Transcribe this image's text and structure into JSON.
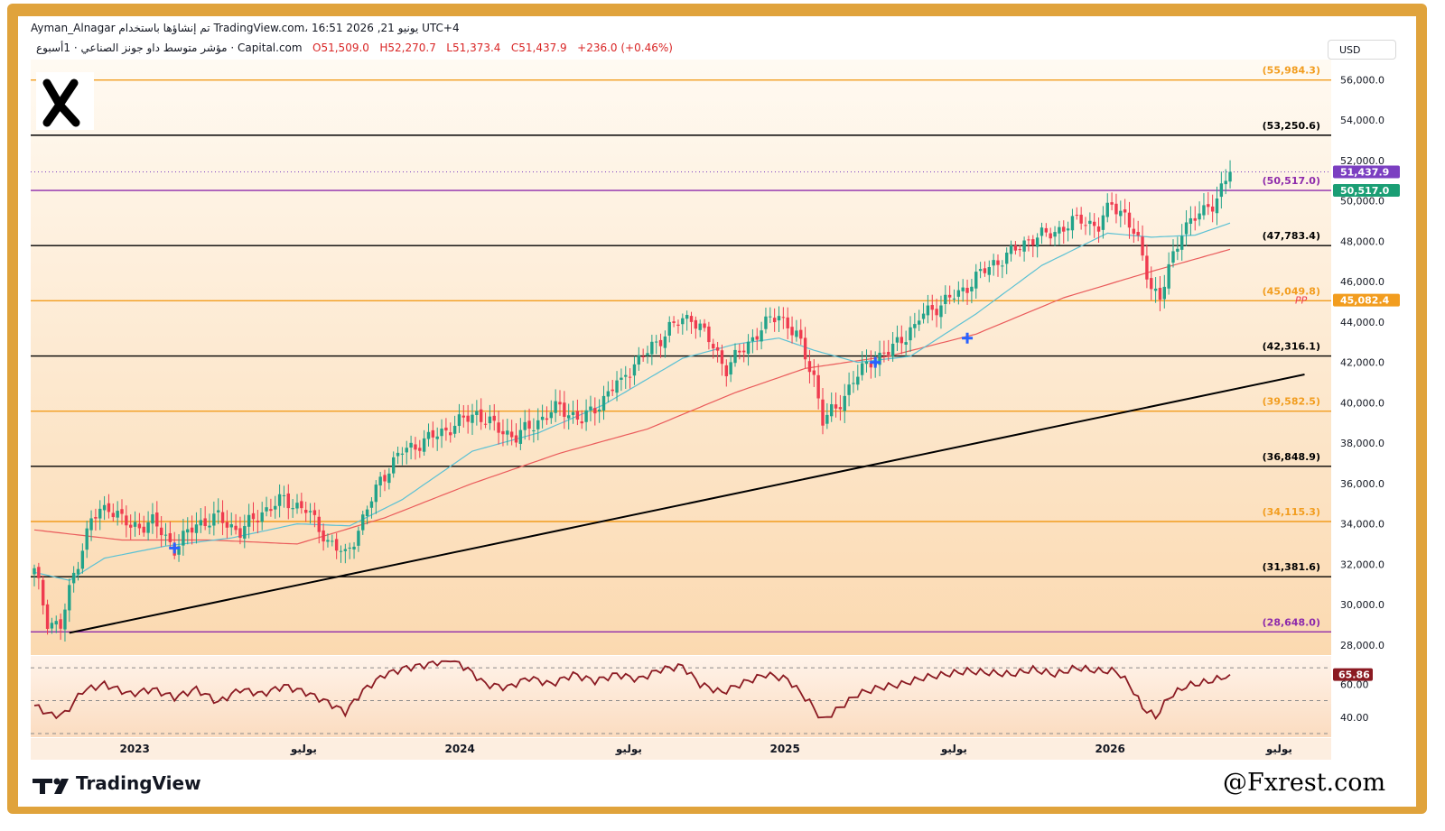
{
  "header": {
    "line1": "Ayman_Alnagar تم إنشاؤها باستخدام TradingView.com، 16:51 2026 ,21 يونيو UTC+4",
    "title": "مؤشر متوسط داو جونز الصناعي · 1أسبوع · Capital.com",
    "ohlc_o": "O51,509.0",
    "ohlc_h": "H52,270.7",
    "ohlc_l": "L51,373.4",
    "ohlc_c": "C51,437.9",
    "change": "+236.0 (+0.46%)",
    "currency": "USD"
  },
  "footer": {
    "brand": "TradingView",
    "watermark": "@Fxrest.com"
  },
  "colors": {
    "up": "#22a38a",
    "down": "#ef3b4f",
    "fib_orange": "#f29d1f",
    "fib_black": "#000000",
    "fib_purple": "#8e2bab",
    "ema_fast": "#5bc1d4",
    "ema_slow": "#ea5b5b",
    "rsi": "#8b1a22",
    "frame": "#e0a33c"
  },
  "chart_data": {
    "type": "candlestick",
    "timeframe": "1W",
    "ylim": [
      27500,
      57000
    ],
    "y_ticks": [
      28000,
      30000,
      32000,
      34000,
      36000,
      38000,
      40000,
      42000,
      44000,
      46000,
      48000,
      50000,
      52000,
      54000,
      56000
    ],
    "y_tick_labels": [
      "28,000.0",
      "30,000.0",
      "32,000.0",
      "34,000.0",
      "36,000.0",
      "38,000.0",
      "40,000.0",
      "42,000.0",
      "44,000.0",
      "46,000.0",
      "48,000.0",
      "50,000.0",
      "52,000.0",
      "54,000.0",
      "56,000.0"
    ],
    "x_labels": [
      "2023",
      "يوليو",
      "2024",
      "يوليو",
      "2025",
      "يوليو",
      "2026",
      "يوليو"
    ],
    "x_label_positions": [
      0.08,
      0.21,
      0.33,
      0.46,
      0.58,
      0.71,
      0.83,
      0.96
    ],
    "fib_levels": [
      {
        "value": 55984.3,
        "label": "(55,984.3)",
        "color": "orange"
      },
      {
        "value": 53250.6,
        "label": "(53,250.6)",
        "color": "black"
      },
      {
        "value": 50517.0,
        "label": "(50,517.0)",
        "color": "purple"
      },
      {
        "value": 47783.4,
        "label": "(47,783.4)",
        "color": "black"
      },
      {
        "value": 45049.8,
        "label": "(45,049.8)",
        "color": "orange"
      },
      {
        "value": 42316.1,
        "label": "(42,316.1)",
        "color": "black"
      },
      {
        "value": 39582.5,
        "label": "(39,582.5)",
        "color": "orange"
      },
      {
        "value": 36848.9,
        "label": "(36,848.9)",
        "color": "black"
      },
      {
        "value": 34115.3,
        "label": "(34,115.3)",
        "color": "orange"
      },
      {
        "value": 31381.6,
        "label": "(31,381.6)",
        "color": "black"
      },
      {
        "value": 28648.0,
        "label": "(28,648.0)",
        "color": "purple"
      }
    ],
    "price_tags": [
      {
        "value": 51437.9,
        "label": "51,437.9",
        "color": "#7b3fc1"
      },
      {
        "value": 50517.0,
        "label": "50,517.0",
        "color": "#1a9e74"
      },
      {
        "value": 45082.4,
        "label": "45,082.4",
        "color": "#f29d1f"
      }
    ],
    "pp_label": "PP",
    "anchor_closes": [
      [
        0,
        31800
      ],
      [
        3,
        29200
      ],
      [
        6,
        28900
      ],
      [
        9,
        31500
      ],
      [
        13,
        34200
      ],
      [
        17,
        34900
      ],
      [
        22,
        33800
      ],
      [
        27,
        34100
      ],
      [
        32,
        32800
      ],
      [
        37,
        34000
      ],
      [
        42,
        34300
      ],
      [
        47,
        33600
      ],
      [
        52,
        34600
      ],
      [
        57,
        35200
      ],
      [
        62,
        34700
      ],
      [
        67,
        33200
      ],
      [
        71,
        32400
      ],
      [
        75,
        34200
      ],
      [
        79,
        36200
      ],
      [
        84,
        37600
      ],
      [
        90,
        38200
      ],
      [
        96,
        38900
      ],
      [
        101,
        39500
      ],
      [
        105,
        38800
      ],
      [
        110,
        38300
      ],
      [
        115,
        39100
      ],
      [
        120,
        39800
      ],
      [
        125,
        39100
      ],
      [
        130,
        40200
      ],
      [
        135,
        41500
      ],
      [
        140,
        42500
      ],
      [
        145,
        43700
      ],
      [
        150,
        44300
      ],
      [
        154,
        43100
      ],
      [
        158,
        41700
      ],
      [
        162,
        42700
      ],
      [
        166,
        43700
      ],
      [
        170,
        44400
      ],
      [
        174,
        43300
      ],
      [
        178,
        41300
      ],
      [
        180,
        39100
      ],
      [
        183,
        39700
      ],
      [
        187,
        41100
      ],
      [
        191,
        42100
      ],
      [
        195,
        42500
      ],
      [
        199,
        43400
      ],
      [
        203,
        44400
      ],
      [
        207,
        44900
      ],
      [
        211,
        45400
      ],
      [
        215,
        46200
      ],
      [
        219,
        46900
      ],
      [
        223,
        47400
      ],
      [
        227,
        48100
      ],
      [
        231,
        48300
      ],
      [
        235,
        48700
      ],
      [
        239,
        49100
      ],
      [
        243,
        48700
      ],
      [
        246,
        49900
      ],
      [
        249,
        49300
      ],
      [
        252,
        47900
      ],
      [
        255,
        45800
      ],
      [
        257,
        45100
      ],
      [
        259,
        46600
      ],
      [
        262,
        48600
      ],
      [
        266,
        49300
      ],
      [
        270,
        50100
      ],
      [
        273,
        51437.9
      ]
    ],
    "pp_series": [
      [
        0,
        33700
      ],
      [
        20,
        33200
      ],
      [
        40,
        33200
      ],
      [
        60,
        33000
      ],
      [
        80,
        34300
      ],
      [
        100,
        36000
      ],
      [
        120,
        37500
      ],
      [
        140,
        38700
      ],
      [
        160,
        40500
      ],
      [
        176,
        41700
      ],
      [
        195,
        42300
      ],
      [
        215,
        43400
      ],
      [
        235,
        45200
      ],
      [
        255,
        46500
      ],
      [
        273,
        47600
      ]
    ],
    "ema_anchors": [
      [
        0,
        31600
      ],
      [
        8,
        31200
      ],
      [
        16,
        32300
      ],
      [
        30,
        32900
      ],
      [
        45,
        33300
      ],
      [
        60,
        34000
      ],
      [
        72,
        33900
      ],
      [
        84,
        35200
      ],
      [
        100,
        37600
      ],
      [
        115,
        38500
      ],
      [
        130,
        39900
      ],
      [
        148,
        42200
      ],
      [
        160,
        42900
      ],
      [
        170,
        43200
      ],
      [
        178,
        42600
      ],
      [
        188,
        42000
      ],
      [
        200,
        42300
      ],
      [
        215,
        44400
      ],
      [
        230,
        46800
      ],
      [
        245,
        48400
      ],
      [
        255,
        48200
      ],
      [
        265,
        48300
      ],
      [
        273,
        48900
      ]
    ],
    "markers": [
      [
        32,
        32800
      ],
      [
        192,
        42000
      ],
      [
        213,
        43200
      ]
    ],
    "trendline": {
      "from": [
        8,
        28600
      ],
      "to": [
        290,
        41400
      ]
    },
    "rsi": {
      "value": 65.86,
      "label": "65.86",
      "ylim": [
        30,
        75
      ],
      "levels": [
        70,
        50,
        30
      ],
      "tick_labels": [
        {
          "v": 60,
          "label": "60.00"
        },
        {
          "v": 40,
          "label": "40.00"
        }
      ],
      "anchors": [
        [
          0,
          47
        ],
        [
          4,
          41
        ],
        [
          7,
          42
        ],
        [
          11,
          56
        ],
        [
          16,
          60
        ],
        [
          22,
          54
        ],
        [
          27,
          57
        ],
        [
          32,
          52
        ],
        [
          37,
          57
        ],
        [
          42,
          49
        ],
        [
          47,
          57
        ],
        [
          52,
          54
        ],
        [
          57,
          59
        ],
        [
          62,
          55
        ],
        [
          67,
          49
        ],
        [
          71,
          43
        ],
        [
          75,
          56
        ],
        [
          80,
          66
        ],
        [
          85,
          70
        ],
        [
          90,
          72
        ],
        [
          95,
          76
        ],
        [
          99,
          69
        ],
        [
          103,
          60
        ],
        [
          108,
          58
        ],
        [
          113,
          64
        ],
        [
          118,
          60
        ],
        [
          123,
          66
        ],
        [
          128,
          62
        ],
        [
          133,
          66
        ],
        [
          138,
          63
        ],
        [
          143,
          69
        ],
        [
          148,
          71
        ],
        [
          152,
          60
        ],
        [
          157,
          55
        ],
        [
          162,
          61
        ],
        [
          167,
          66
        ],
        [
          172,
          63
        ],
        [
          177,
          49
        ],
        [
          180,
          38
        ],
        [
          183,
          44
        ],
        [
          188,
          54
        ],
        [
          193,
          58
        ],
        [
          198,
          60
        ],
        [
          203,
          64
        ],
        [
          208,
          66
        ],
        [
          213,
          68
        ],
        [
          218,
          67
        ],
        [
          223,
          66
        ],
        [
          228,
          69
        ],
        [
          233,
          66
        ],
        [
          238,
          70
        ],
        [
          243,
          68
        ],
        [
          247,
          68
        ],
        [
          250,
          60
        ],
        [
          253,
          46
        ],
        [
          256,
          40
        ],
        [
          259,
          52
        ],
        [
          263,
          59
        ],
        [
          267,
          61
        ],
        [
          270,
          63
        ],
        [
          273,
          65.86
        ]
      ]
    }
  }
}
